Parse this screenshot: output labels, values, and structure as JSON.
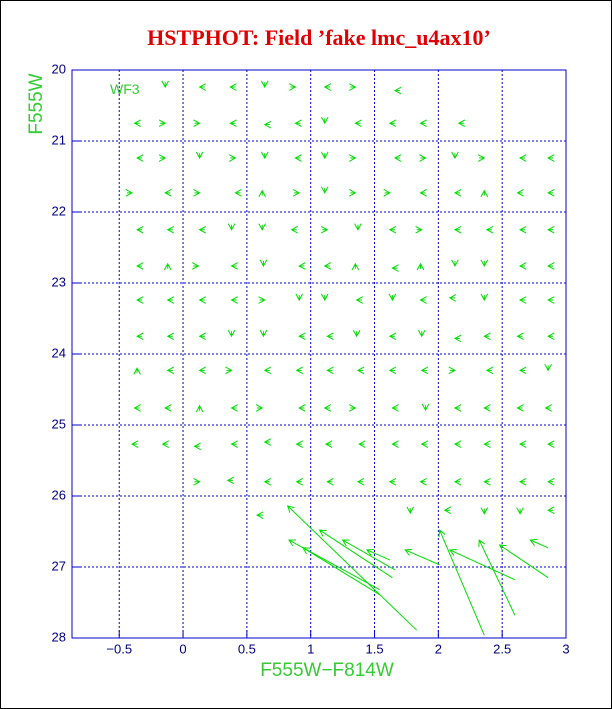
{
  "chart_data": {
    "type": "vector",
    "title": "HSTPHOT: Field ’fake lmc_u4ax10’",
    "x_label": "F555W−F814W",
    "y_label": "F555W",
    "annotation": "WF3",
    "xlim": [
      -0.87,
      3.0
    ],
    "ylim": [
      28,
      20
    ],
    "xticks": [
      {
        "value": -0.5,
        "label": "−0.5"
      },
      0,
      0.5,
      1,
      1.5,
      2,
      2.5,
      3
    ],
    "yticks": [
      20,
      21,
      22,
      23,
      24,
      25,
      26,
      27,
      28
    ],
    "grid": true,
    "color": "#00dd00",
    "arrows": [
      [
        -0.14,
        20.24,
        -0.14,
        20.17
      ],
      [
        0.13,
        20.24,
        0.17,
        20.24
      ],
      [
        0.37,
        20.24,
        0.41,
        20.24
      ],
      [
        0.64,
        20.24,
        0.64,
        20.17
      ],
      [
        0.88,
        20.24,
        0.84,
        20.24
      ],
      [
        1.11,
        20.24,
        1.15,
        20.24
      ],
      [
        1.35,
        20.24,
        1.31,
        20.24
      ],
      [
        1.66,
        20.29,
        1.7,
        20.29
      ],
      [
        -0.38,
        20.75,
        -0.34,
        20.75
      ],
      [
        -0.14,
        20.75,
        -0.18,
        20.75
      ],
      [
        0.13,
        20.75,
        0.09,
        20.75
      ],
      [
        0.37,
        20.75,
        0.41,
        20.75
      ],
      [
        0.64,
        20.77,
        0.68,
        20.77
      ],
      [
        0.88,
        20.75,
        0.92,
        20.75
      ],
      [
        1.11,
        20.75,
        1.11,
        20.68
      ],
      [
        1.35,
        20.75,
        1.39,
        20.75
      ],
      [
        1.62,
        20.75,
        1.66,
        20.75
      ],
      [
        1.86,
        20.75,
        1.9,
        20.75
      ],
      [
        2.16,
        20.75,
        2.2,
        20.75
      ],
      [
        -0.36,
        21.24,
        -0.32,
        21.24
      ],
      [
        -0.14,
        21.24,
        -0.18,
        21.24
      ],
      [
        0.13,
        21.24,
        0.13,
        21.17
      ],
      [
        0.41,
        21.24,
        0.37,
        21.24
      ],
      [
        0.64,
        21.24,
        0.64,
        21.17
      ],
      [
        0.88,
        21.24,
        0.92,
        21.24
      ],
      [
        1.11,
        21.24,
        1.11,
        21.17
      ],
      [
        1.35,
        21.24,
        1.31,
        21.24
      ],
      [
        1.66,
        21.24,
        1.7,
        21.24
      ],
      [
        1.9,
        21.24,
        1.86,
        21.24
      ],
      [
        2.13,
        21.24,
        2.13,
        21.17
      ],
      [
        2.36,
        21.24,
        2.32,
        21.24
      ],
      [
        2.64,
        21.24,
        2.68,
        21.24
      ],
      [
        2.86,
        21.24,
        2.9,
        21.24
      ],
      [
        -0.4,
        21.73,
        -0.44,
        21.73
      ],
      [
        -0.14,
        21.73,
        -0.1,
        21.73
      ],
      [
        0.13,
        21.73,
        0.09,
        21.73
      ],
      [
        0.41,
        21.73,
        0.45,
        21.73
      ],
      [
        0.62,
        21.7,
        0.62,
        21.77
      ],
      [
        0.91,
        21.73,
        0.87,
        21.73
      ],
      [
        1.11,
        21.73,
        1.11,
        21.66
      ],
      [
        1.35,
        21.73,
        1.31,
        21.73
      ],
      [
        1.62,
        21.73,
        1.58,
        21.73
      ],
      [
        1.86,
        21.73,
        1.9,
        21.73
      ],
      [
        2.13,
        21.73,
        2.17,
        21.73
      ],
      [
        2.36,
        21.7,
        2.36,
        21.77
      ],
      [
        2.62,
        21.73,
        2.66,
        21.73
      ],
      [
        2.86,
        21.73,
        2.9,
        21.73
      ],
      [
        -0.36,
        22.25,
        -0.32,
        22.25
      ],
      [
        -0.12,
        22.25,
        -0.08,
        22.25
      ],
      [
        0.13,
        22.25,
        0.17,
        22.25
      ],
      [
        0.38,
        22.25,
        0.38,
        22.18
      ],
      [
        0.62,
        22.25,
        0.62,
        22.18
      ],
      [
        0.85,
        22.25,
        0.89,
        22.25
      ],
      [
        1.13,
        22.25,
        1.09,
        22.25
      ],
      [
        1.37,
        22.25,
        1.37,
        22.18
      ],
      [
        1.62,
        22.25,
        1.66,
        22.25
      ],
      [
        1.87,
        22.25,
        1.83,
        22.25
      ],
      [
        2.13,
        22.25,
        2.17,
        22.25
      ],
      [
        2.38,
        22.25,
        2.42,
        22.25
      ],
      [
        2.64,
        22.25,
        2.68,
        22.25
      ],
      [
        2.86,
        22.25,
        2.9,
        22.25
      ],
      [
        -0.36,
        22.76,
        -0.32,
        22.76
      ],
      [
        -0.12,
        22.73,
        -0.12,
        22.8
      ],
      [
        0.12,
        22.76,
        0.08,
        22.76
      ],
      [
        0.38,
        22.76,
        0.42,
        22.76
      ],
      [
        0.63,
        22.76,
        0.63,
        22.69
      ],
      [
        0.91,
        22.76,
        0.95,
        22.76
      ],
      [
        1.11,
        22.76,
        1.15,
        22.76
      ],
      [
        1.35,
        22.73,
        1.35,
        22.8
      ],
      [
        1.64,
        22.79,
        1.68,
        22.79
      ],
      [
        1.86,
        22.73,
        1.86,
        22.8
      ],
      [
        2.13,
        22.76,
        2.13,
        22.69
      ],
      [
        2.36,
        22.76,
        2.36,
        22.69
      ],
      [
        2.64,
        22.76,
        2.68,
        22.76
      ],
      [
        2.86,
        22.76,
        2.9,
        22.76
      ],
      [
        -0.36,
        23.24,
        -0.32,
        23.24
      ],
      [
        -0.12,
        23.24,
        -0.08,
        23.24
      ],
      [
        0.13,
        23.24,
        0.17,
        23.24
      ],
      [
        0.38,
        23.24,
        0.42,
        23.24
      ],
      [
        0.64,
        23.24,
        0.6,
        23.24
      ],
      [
        0.91,
        23.24,
        0.91,
        23.17
      ],
      [
        1.11,
        23.24,
        1.11,
        23.17
      ],
      [
        1.36,
        23.24,
        1.4,
        23.24
      ],
      [
        1.64,
        23.24,
        1.64,
        23.17
      ],
      [
        1.86,
        23.24,
        1.9,
        23.24
      ],
      [
        2.09,
        23.21,
        2.13,
        23.21
      ],
      [
        2.36,
        23.24,
        2.36,
        23.17
      ],
      [
        2.64,
        23.24,
        2.68,
        23.24
      ],
      [
        2.86,
        23.24,
        2.9,
        23.24
      ],
      [
        -0.36,
        23.75,
        -0.32,
        23.75
      ],
      [
        -0.12,
        23.75,
        -0.08,
        23.75
      ],
      [
        0.13,
        23.75,
        0.17,
        23.75
      ],
      [
        0.38,
        23.75,
        0.38,
        23.68
      ],
      [
        0.63,
        23.75,
        0.63,
        23.68
      ],
      [
        0.91,
        23.75,
        0.95,
        23.75
      ],
      [
        1.13,
        23.75,
        1.17,
        23.75
      ],
      [
        1.36,
        23.75,
        1.36,
        23.68
      ],
      [
        1.62,
        23.75,
        1.66,
        23.75
      ],
      [
        1.87,
        23.75,
        1.87,
        23.68
      ],
      [
        2.13,
        23.78,
        2.17,
        23.78
      ],
      [
        2.36,
        23.75,
        2.4,
        23.75
      ],
      [
        2.62,
        23.75,
        2.66,
        23.75
      ],
      [
        2.86,
        23.75,
        2.9,
        23.75
      ],
      [
        -0.36,
        24.2,
        -0.36,
        24.27
      ],
      [
        -0.12,
        24.23,
        -0.08,
        24.23
      ],
      [
        0.13,
        24.23,
        0.17,
        24.23
      ],
      [
        0.38,
        24.23,
        0.34,
        24.23
      ],
      [
        0.64,
        24.23,
        0.68,
        24.23
      ],
      [
        0.89,
        24.23,
        0.93,
        24.23
      ],
      [
        1.13,
        24.23,
        1.17,
        24.23
      ],
      [
        1.37,
        24.23,
        1.41,
        24.23
      ],
      [
        1.62,
        24.23,
        1.66,
        24.23
      ],
      [
        1.87,
        24.23,
        1.91,
        24.23
      ],
      [
        2.13,
        24.23,
        2.09,
        24.23
      ],
      [
        2.38,
        24.23,
        2.42,
        24.23
      ],
      [
        2.64,
        24.23,
        2.68,
        24.23
      ],
      [
        2.86,
        24.23,
        2.86,
        24.16
      ],
      [
        -0.38,
        24.76,
        -0.34,
        24.76
      ],
      [
        -0.14,
        24.76,
        -0.1,
        24.76
      ],
      [
        0.13,
        24.73,
        0.13,
        24.8
      ],
      [
        0.38,
        24.76,
        0.42,
        24.76
      ],
      [
        0.62,
        24.76,
        0.58,
        24.76
      ],
      [
        0.91,
        24.76,
        0.95,
        24.76
      ],
      [
        1.11,
        24.76,
        1.15,
        24.76
      ],
      [
        1.35,
        24.76,
        1.31,
        24.76
      ],
      [
        1.64,
        24.76,
        1.68,
        24.76
      ],
      [
        1.9,
        24.79,
        1.9,
        24.72
      ],
      [
        2.13,
        24.76,
        2.17,
        24.76
      ],
      [
        2.36,
        24.76,
        2.4,
        24.76
      ],
      [
        2.62,
        24.76,
        2.66,
        24.76
      ],
      [
        2.84,
        24.76,
        2.88,
        24.76
      ],
      [
        -0.4,
        25.27,
        -0.36,
        25.27
      ],
      [
        -0.16,
        25.27,
        -0.12,
        25.27
      ],
      [
        0.09,
        25.3,
        0.13,
        25.3
      ],
      [
        0.38,
        25.27,
        0.42,
        25.27
      ],
      [
        0.64,
        25.24,
        0.68,
        25.24
      ],
      [
        0.89,
        25.27,
        0.93,
        25.27
      ],
      [
        1.12,
        25.27,
        1.16,
        25.27
      ],
      [
        1.38,
        25.27,
        1.42,
        25.27
      ],
      [
        1.64,
        25.27,
        1.68,
        25.27
      ],
      [
        1.87,
        25.27,
        1.91,
        25.27
      ],
      [
        2.13,
        25.27,
        2.17,
        25.27
      ],
      [
        2.36,
        25.27,
        2.4,
        25.27
      ],
      [
        2.64,
        25.27,
        2.68,
        25.27
      ],
      [
        2.86,
        25.27,
        2.9,
        25.27
      ],
      [
        0.13,
        25.8,
        0.09,
        25.8
      ],
      [
        0.35,
        25.78,
        0.39,
        25.78
      ],
      [
        0.64,
        25.8,
        0.68,
        25.8
      ],
      [
        0.89,
        25.8,
        0.93,
        25.8
      ],
      [
        1.13,
        25.8,
        1.17,
        25.8
      ],
      [
        1.37,
        25.8,
        1.41,
        25.8
      ],
      [
        1.62,
        25.8,
        1.66,
        25.8
      ],
      [
        1.86,
        25.8,
        1.9,
        25.8
      ],
      [
        2.13,
        25.8,
        2.17,
        25.8
      ],
      [
        2.36,
        25.8,
        2.4,
        25.8
      ],
      [
        2.64,
        25.8,
        2.68,
        25.8
      ],
      [
        2.86,
        25.8,
        2.9,
        25.8
      ],
      [
        0.58,
        26.27,
        0.63,
        26.27
      ],
      [
        1.78,
        26.24,
        1.78,
        26.17
      ],
      [
        2.05,
        26.2,
        2.09,
        26.2
      ],
      [
        2.36,
        26.25,
        2.36,
        26.18
      ],
      [
        2.64,
        26.25,
        2.64,
        26.18
      ],
      [
        2.86,
        26.2,
        2.9,
        26.2
      ],
      [
        0.82,
        26.14,
        1.83,
        27.89
      ],
      [
        0.83,
        26.62,
        1.54,
        27.32
      ],
      [
        0.94,
        26.73,
        1.54,
        27.39
      ],
      [
        1.07,
        26.48,
        1.64,
        27.15
      ],
      [
        1.25,
        26.62,
        1.66,
        27.04
      ],
      [
        1.44,
        26.76,
        1.62,
        26.9
      ],
      [
        1.74,
        26.76,
        2.01,
        26.97
      ],
      [
        2.01,
        26.48,
        2.36,
        27.96
      ],
      [
        2.09,
        26.76,
        2.6,
        27.18
      ],
      [
        2.32,
        26.62,
        2.6,
        27.68
      ],
      [
        2.48,
        26.69,
        2.86,
        27.15
      ],
      [
        2.72,
        26.62,
        2.86,
        26.73
      ]
    ]
  }
}
